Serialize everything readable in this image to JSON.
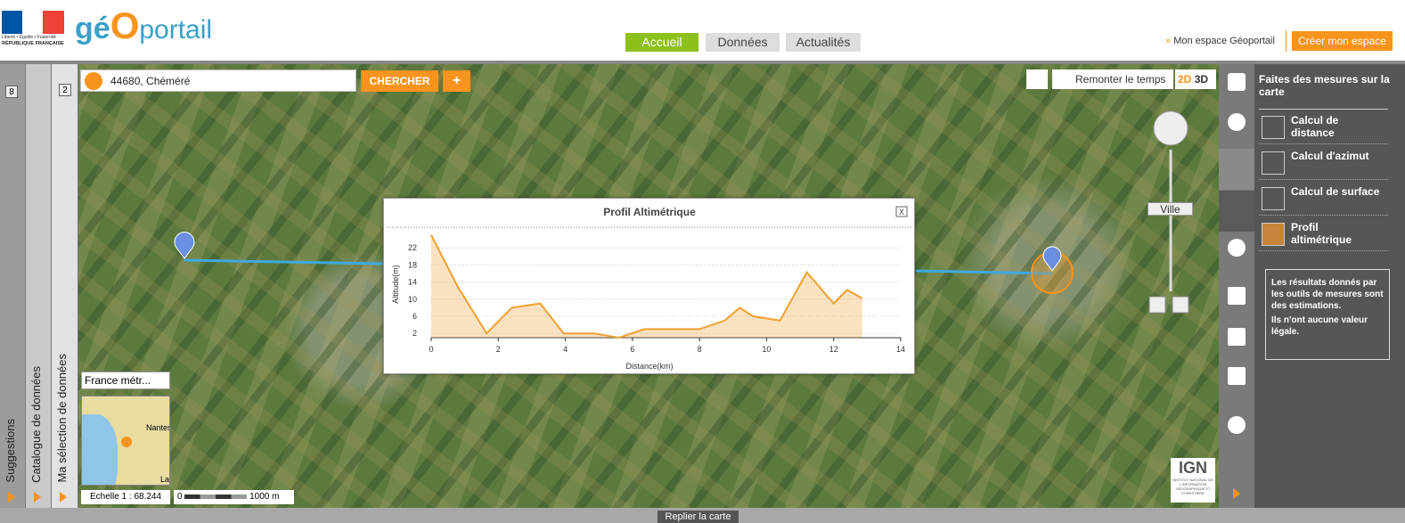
{
  "header": {
    "motto": "Liberté • Égalité • Fraternité",
    "republic": "RÉPUBLIQUE FRANÇAISE",
    "brand_ge": "gé",
    "brand_o": "O",
    "brand_portail": "portail",
    "nav": [
      "Accueil",
      "Données",
      "Actualités"
    ],
    "my_space": "Mon espace Géoportail",
    "create_space": "Créer mon espace"
  },
  "side_tabs": [
    {
      "label": "Suggestions",
      "count": 8
    },
    {
      "label": "Catalogue de données"
    },
    {
      "label": "Ma sélection de données",
      "count": 2
    }
  ],
  "search": {
    "query": "44680, Chéméré",
    "button": "CHERCHER",
    "add": "+"
  },
  "map_controls": {
    "history": "Remonter le temps",
    "mode_2d": "2D",
    "mode_3d": "3D",
    "zoom_level": "Ville"
  },
  "overview": {
    "projection": "France métr...",
    "place": "Nantes",
    "place_cut": "La"
  },
  "scale": {
    "ratio": "Echelle 1 : 68.244",
    "bar_start": "0",
    "bar_end": "1000 m"
  },
  "ign": {
    "logo": "IGN",
    "caption": "INSTITUT NATIONAL DE L'INFORMATION GÉOGRAPHIQUE ET FORESTIÈRE"
  },
  "tools_panel": {
    "title": "Faites des mesures sur la carte",
    "tools": [
      "Calcul de distance",
      "Calcul d'azimut",
      "Calcul de surface",
      "Profil altimétrique"
    ],
    "note": [
      "Les résultats donnés par les outils de mesures sont des estimations.",
      "Ils n'ont aucune valeur légale."
    ]
  },
  "footer": {
    "collapse": "Replier la carte"
  },
  "chart_data": {
    "type": "area",
    "title": "Profil Altimétrique",
    "close": "X",
    "x_label": "Distance(km)",
    "y_label": "Altitude(m)",
    "x": [
      0,
      0.8,
      1.65,
      2.4,
      3.25,
      3.95,
      4.85,
      5.6,
      6.35,
      8,
      8.75,
      9.2,
      9.6,
      10.4,
      11.2,
      12,
      12.4,
      12.85
    ],
    "values": [
      25,
      12.8,
      2,
      8,
      9,
      2,
      2,
      1,
      3,
      3,
      5,
      8,
      6,
      5,
      16.3,
      9,
      12.2,
      10.2
    ],
    "color": "#f0a030",
    "xlim": [
      0,
      14
    ],
    "ylim": [
      1,
      26
    ],
    "xticks": [
      0,
      2,
      4,
      6,
      8,
      10,
      12,
      14
    ],
    "yticks": [
      2,
      6,
      10,
      14,
      18,
      22
    ],
    "grid": true
  }
}
